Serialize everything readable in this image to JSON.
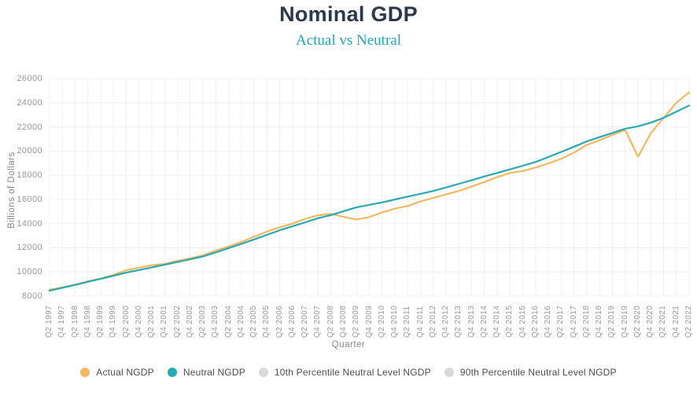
{
  "header": {
    "title": "Nominal GDP",
    "subtitle": "Actual vs Neutral",
    "title_color": "#2B394B",
    "subtitle_color": "#1FA9B5"
  },
  "chart_data": {
    "type": "line",
    "title": "Nominal GDP",
    "subtitle": "Actual vs Neutral",
    "xlabel": "Quarter",
    "ylabel": "Billions of Dollars",
    "ylim": [
      8000,
      26000
    ],
    "yticks": [
      8000,
      10000,
      12000,
      14000,
      16000,
      18000,
      20000,
      22000,
      24000,
      26000
    ],
    "grid": true,
    "legend_position": "bottom",
    "colors": {
      "actual": "#F5B860",
      "neutral": "#29A9B3",
      "inactive": "#D9D9D9",
      "gridline": "#F0F0F0"
    },
    "categories": [
      "Q2 1997",
      "Q4 1997",
      "Q2 1998",
      "Q4 1998",
      "Q2 1999",
      "Q4 1999",
      "Q2 2000",
      "Q4 2000",
      "Q2 2001",
      "Q4 2001",
      "Q2 2002",
      "Q4 2002",
      "Q2 2003",
      "Q4 2003",
      "Q2 2004",
      "Q4 2004",
      "Q2 2005",
      "Q4 2005",
      "Q2 2006",
      "Q4 2006",
      "Q2 2007",
      "Q4 2007",
      "Q2 2008",
      "Q4 2008",
      "Q2 2009",
      "Q4 2009",
      "Q2 2010",
      "Q4 2010",
      "Q2 2011",
      "Q4 2011",
      "Q2 2012",
      "Q4 2012",
      "Q2 2013",
      "Q4 2013",
      "Q2 2014",
      "Q4 2014",
      "Q2 2015",
      "Q4 2015",
      "Q2 2016",
      "Q4 2016",
      "Q2 2017",
      "Q4 2017",
      "Q2 2018",
      "Q4 2018",
      "Q2 2019",
      "Q4 2019",
      "Q2 2020",
      "Q4 2020",
      "Q2 2021",
      "Q4 2021",
      "Q2 2022"
    ],
    "series": [
      {
        "name": "Actual NGDP",
        "color": "#F5B860",
        "values": [
          8530,
          8730,
          8950,
          9230,
          9450,
          9760,
          10150,
          10350,
          10560,
          10660,
          10930,
          11120,
          11380,
          11770,
          12110,
          12490,
          12920,
          13340,
          13700,
          14000,
          14400,
          14690,
          14810,
          14550,
          14340,
          14540,
          14930,
          15240,
          15460,
          15840,
          16120,
          16420,
          16700,
          17080,
          17440,
          17850,
          18190,
          18350,
          18640,
          18980,
          19360,
          19880,
          20510,
          20900,
          21330,
          21750,
          19520,
          21480,
          22740,
          24000,
          24850
        ]
      },
      {
        "name": "Neutral NGDP",
        "color": "#29A9B3",
        "values": [
          8450,
          8690,
          8930,
          9180,
          9430,
          9690,
          9950,
          10160,
          10380,
          10600,
          10820,
          11050,
          11280,
          11620,
          11970,
          12330,
          12690,
          13070,
          13450,
          13780,
          14110,
          14450,
          14700,
          15030,
          15350,
          15550,
          15750,
          15990,
          16230,
          16460,
          16700,
          16990,
          17290,
          17590,
          17900,
          18190,
          18490,
          18790,
          19100,
          19510,
          19930,
          20360,
          20800,
          21150,
          21500,
          21850,
          22050,
          22350,
          22750,
          23250,
          23770
        ]
      },
      {
        "name": "10th Percentile Neutral Level NGDP",
        "color": "#D9D9D9",
        "values": []
      },
      {
        "name": "90th Percentile Neutral Level NGDP",
        "color": "#D9D9D9",
        "values": []
      }
    ]
  },
  "legend": {
    "items": [
      {
        "label": "Actual NGDP",
        "color": "#F5B860",
        "active": true
      },
      {
        "label": "Neutral NGDP",
        "color": "#29A9B3",
        "active": true
      },
      {
        "label": "10th Percentile Neutral Level NGDP",
        "color": "#D9D9D9",
        "active": false
      },
      {
        "label": "90th Percentile Neutral Level NGDP",
        "color": "#D9D9D9",
        "active": false
      }
    ]
  }
}
